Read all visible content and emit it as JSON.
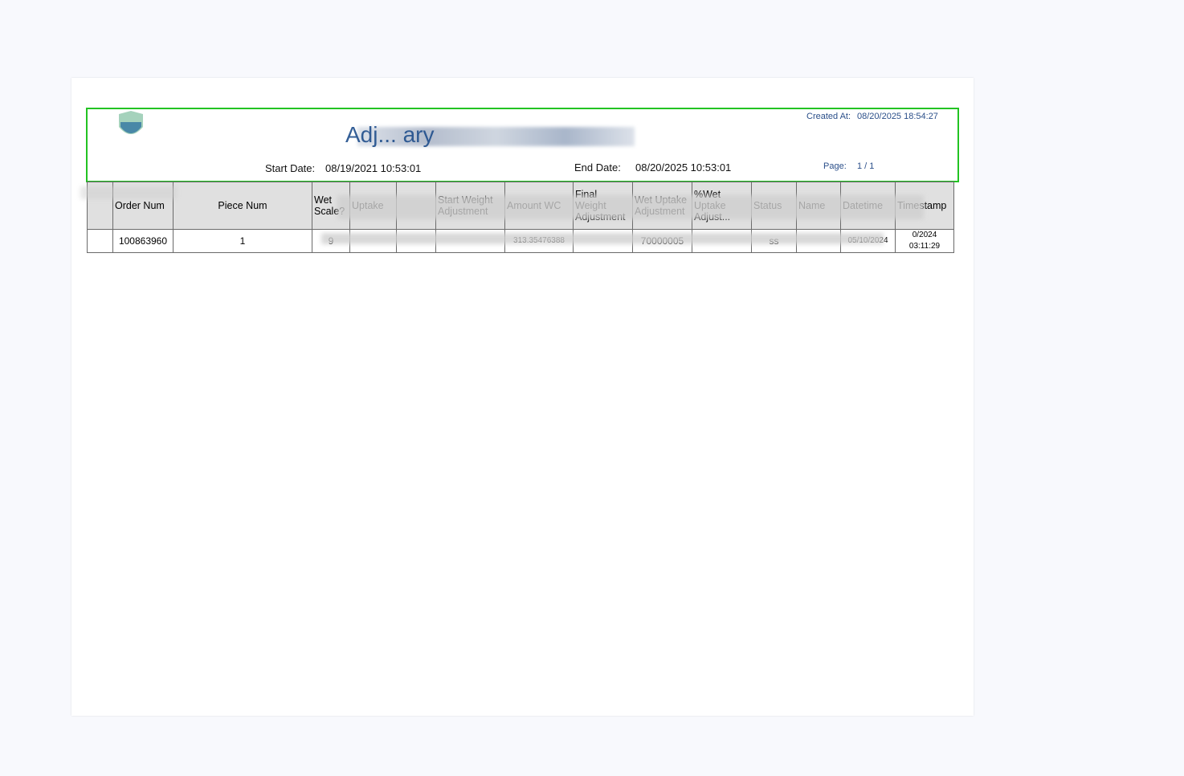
{
  "header": {
    "title_visible": "Adj... ary",
    "created_label": "Created At:",
    "created_value": "08/20/2025 18:54:27",
    "start_label": "Start Date:",
    "start_value": "08/19/2021 10:53:01",
    "end_label": "End Date:",
    "end_value": "08/20/2025 10:53:01",
    "page_label": "Page:",
    "page_value": "1 / 1"
  },
  "table": {
    "columns": [
      "",
      "Order Num",
      "Piece Num",
      "Wet Scale?",
      "Uptake",
      "",
      "Start Weight Adjustment",
      "Amount WC",
      "Final Weight Adjustment",
      "Wet Uptake Adjustment",
      "%Wet Uptake Adjust...",
      "Status",
      "Name",
      "Datetime",
      "Timestamp"
    ],
    "rows": [
      [
        "",
        "100863960",
        "1",
        "9",
        "",
        "",
        "",
        "313.35476388",
        "",
        "70000005",
        "",
        "ss",
        "",
        "05/10/2024",
        "0/2024 03:11:29"
      ]
    ]
  },
  "colors": {
    "accent": "#22c322",
    "title": "#1f4e8c"
  }
}
